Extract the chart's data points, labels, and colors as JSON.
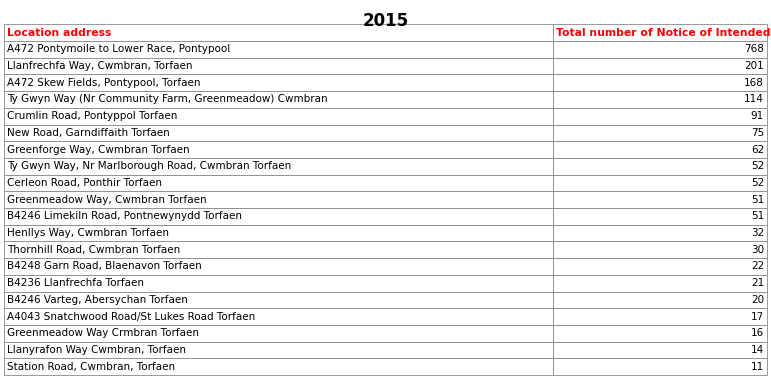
{
  "title": "2015",
  "col1_header": "Location address",
  "col2_header": "Total number of Notice of Intended Prosecution Issued",
  "header_color": "#FF0000",
  "rows": [
    [
      "A472 Pontymoile to Lower Race, Pontypool",
      "768"
    ],
    [
      "Llanfrechfa Way, Cwmbran, Torfaen",
      "201"
    ],
    [
      "A472 Skew Fields, Pontypool, Torfaen",
      "168"
    ],
    [
      "Ty Gwyn Way (Nr Community Farm, Greenmeadow) Cwmbran",
      "114"
    ],
    [
      "Crumlin Road, Pontyppol Torfaen",
      "91"
    ],
    [
      "New Road, Garndiffaith Torfaen",
      "75"
    ],
    [
      "Greenforge Way, Cwmbran Torfaen",
      "62"
    ],
    [
      "Ty Gwyn Way, Nr Marlborough Road, Cwmbran Torfaen",
      "52"
    ],
    [
      "Cerleon Road, Ponthir Torfaen",
      "52"
    ],
    [
      "Greenmeadow Way, Cwmbran Torfaen",
      "51"
    ],
    [
      "B4246 Limekiln Road, Pontnewynydd Torfaen",
      "51"
    ],
    [
      "Henllys Way, Cwmbran Torfaen",
      "32"
    ],
    [
      "Thornhill Road, Cwmbran Torfaen",
      "30"
    ],
    [
      "B4248 Garn Road, Blaenavon Torfaen",
      "22"
    ],
    [
      "B4236 Llanfrechfa Torfaen",
      "21"
    ],
    [
      "B4246 Varteg, Abersychan Torfaen",
      "20"
    ],
    [
      "A4043 Snatchwood Road/St Lukes Road Torfaen",
      "17"
    ],
    [
      "Greenmeadow Way Crmbran Torfaen",
      "16"
    ],
    [
      "Llanyrafon Way Cwmbran, Torfaen",
      "14"
    ],
    [
      "Station Road, Cwmbran, Torfaen",
      "11"
    ]
  ],
  "text_color": "#000000",
  "border_color": "#888888",
  "font_size": 7.5,
  "header_font_size": 7.8,
  "title_font_size": 12
}
